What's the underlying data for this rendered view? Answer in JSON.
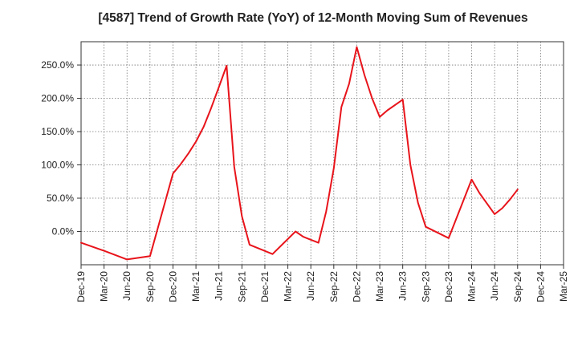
{
  "chart_data": {
    "type": "line",
    "title": "[4587]  Trend of Growth Rate (YoY) of 12-Month Moving Sum of Revenues",
    "xlabel": "",
    "ylabel": "",
    "x_tick_labels": [
      "Dec-19",
      "Mar-20",
      "Jun-20",
      "Sep-20",
      "Dec-20",
      "Mar-21",
      "Jun-21",
      "Sep-21",
      "Dec-21",
      "Mar-22",
      "Jun-22",
      "Sep-22",
      "Dec-22",
      "Mar-23",
      "Jun-23",
      "Sep-23",
      "Dec-23",
      "Mar-24",
      "Jun-24",
      "Sep-24",
      "Dec-24",
      "Mar-25"
    ],
    "y_ticks": [
      0,
      50,
      100,
      150,
      200,
      250
    ],
    "y_tick_labels": [
      "0.0%",
      "50.0%",
      "100.0%",
      "150.0%",
      "200.0%",
      "250.0%"
    ],
    "ylim": [
      -50,
      285
    ],
    "grid": true,
    "series": [
      {
        "color": "#e8141b",
        "values": [
          [
            0,
            -17
          ],
          [
            3,
            -29
          ],
          [
            6,
            -42
          ],
          [
            9,
            -37
          ],
          [
            12,
            87
          ],
          [
            13,
            101
          ],
          [
            14,
            117
          ],
          [
            15,
            135
          ],
          [
            16,
            157
          ],
          [
            17,
            186
          ],
          [
            18,
            217
          ],
          [
            19,
            249
          ],
          [
            20,
            97
          ],
          [
            21,
            23
          ],
          [
            22,
            -20
          ],
          [
            25,
            -34
          ],
          [
            28,
            0
          ],
          [
            29,
            -8
          ],
          [
            31,
            -17
          ],
          [
            32,
            30
          ],
          [
            33,
            95
          ],
          [
            34,
            187
          ],
          [
            35,
            222
          ],
          [
            36,
            277
          ],
          [
            37,
            235
          ],
          [
            38,
            200
          ],
          [
            39,
            172
          ],
          [
            40,
            182
          ],
          [
            42,
            198
          ],
          [
            43,
            100
          ],
          [
            44,
            43
          ],
          [
            45,
            7
          ],
          [
            48,
            -10
          ],
          [
            51,
            78
          ],
          [
            52,
            58
          ],
          [
            54,
            26
          ],
          [
            55,
            35
          ],
          [
            56,
            48
          ],
          [
            57,
            63
          ]
        ]
      }
    ]
  }
}
